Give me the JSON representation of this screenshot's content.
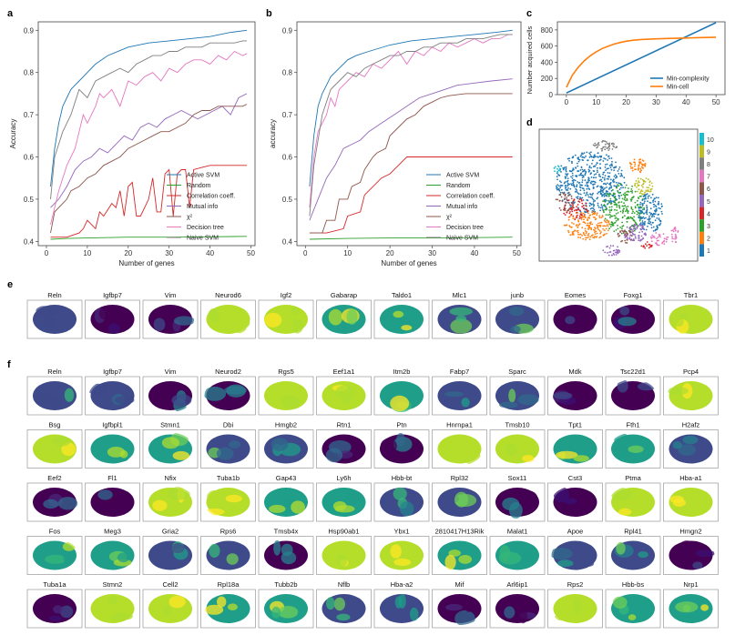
{
  "panel_labels": {
    "a": "a",
    "b": "b",
    "c": "c",
    "d": "d",
    "e": "e",
    "f": "f"
  },
  "colors": {
    "active_svm": "#1f77b4",
    "random": "#2ca02c",
    "correlation": "#d62728",
    "mutual_info": "#9467bd",
    "chi2": "#8c564b",
    "decision_tree": "#e377c2",
    "naive_svm": "#7f7f7f",
    "min_complexity": "#1f77b4",
    "min_cell": "#ff7f0e"
  },
  "chart_data": [
    {
      "id": "a",
      "type": "line",
      "xlabel": "Number of genes",
      "ylabel": "Accuracy",
      "xlim": [
        -2,
        51
      ],
      "ylim": [
        0.39,
        0.92
      ],
      "xticks": [
        0,
        10,
        20,
        30,
        40,
        50
      ],
      "yticks": [
        0.4,
        0.5,
        0.6,
        0.7,
        0.8,
        0.9
      ],
      "ytick_labels": [
        "0.4",
        "0.5",
        "0.6",
        "0.7",
        "0.8",
        "0.9"
      ],
      "series": [
        {
          "name": "Active SVM",
          "key": "active_svm",
          "x": [
            1,
            2,
            3,
            4,
            5,
            6,
            7,
            8,
            10,
            12,
            15,
            20,
            25,
            30,
            35,
            40,
            45,
            49
          ],
          "y": [
            0.53,
            0.62,
            0.68,
            0.72,
            0.74,
            0.76,
            0.77,
            0.78,
            0.8,
            0.82,
            0.84,
            0.86,
            0.87,
            0.875,
            0.88,
            0.885,
            0.895,
            0.9
          ]
        },
        {
          "name": "Random",
          "key": "random",
          "x": [
            1,
            5,
            10,
            20,
            30,
            40,
            49
          ],
          "y": [
            0.405,
            0.407,
            0.408,
            0.41,
            0.41,
            0.411,
            0.412
          ]
        },
        {
          "name": "Correlation coeff.",
          "key": "correlation",
          "x": [
            1,
            5,
            8,
            9,
            10,
            12,
            13,
            14,
            16,
            17,
            18,
            19,
            20,
            21,
            22,
            23,
            24,
            25,
            26,
            27,
            28,
            29,
            30,
            31,
            32,
            33,
            34,
            35,
            36,
            38,
            40,
            42,
            45,
            49
          ],
          "y": [
            0.41,
            0.41,
            0.42,
            0.43,
            0.45,
            0.43,
            0.47,
            0.46,
            0.49,
            0.48,
            0.52,
            0.46,
            0.53,
            0.54,
            0.46,
            0.46,
            0.48,
            0.5,
            0.55,
            0.47,
            0.47,
            0.56,
            0.57,
            0.46,
            0.56,
            0.57,
            0.57,
            0.48,
            0.57,
            0.575,
            0.58,
            0.58,
            0.58,
            0.58
          ]
        },
        {
          "name": "Mutual info",
          "key": "mutual_info",
          "x": [
            1,
            3,
            5,
            7,
            9,
            11,
            13,
            15,
            17,
            19,
            21,
            23,
            25,
            27,
            29,
            31,
            33,
            35,
            37,
            39,
            41,
            43,
            45,
            47,
            49
          ],
          "y": [
            0.48,
            0.5,
            0.53,
            0.57,
            0.59,
            0.6,
            0.62,
            0.61,
            0.63,
            0.65,
            0.64,
            0.67,
            0.68,
            0.67,
            0.69,
            0.7,
            0.71,
            0.7,
            0.69,
            0.7,
            0.71,
            0.72,
            0.7,
            0.74,
            0.75
          ]
        },
        {
          "name": "χ²",
          "key": "chi2",
          "x": [
            1,
            2,
            3,
            5,
            6,
            8,
            10,
            12,
            14,
            16,
            18,
            20,
            22,
            24,
            26,
            28,
            30,
            32,
            34,
            36,
            38,
            40,
            42,
            44,
            46,
            48,
            49
          ],
          "y": [
            0.42,
            0.47,
            0.48,
            0.5,
            0.52,
            0.53,
            0.55,
            0.56,
            0.58,
            0.59,
            0.6,
            0.62,
            0.63,
            0.64,
            0.65,
            0.66,
            0.66,
            0.67,
            0.68,
            0.7,
            0.71,
            0.71,
            0.72,
            0.72,
            0.72,
            0.72,
            0.725
          ]
        },
        {
          "name": "Decision tree",
          "key": "decision_tree",
          "x": [
            1,
            3,
            5,
            7,
            8,
            9,
            10,
            12,
            13,
            14,
            16,
            18,
            20,
            22,
            24,
            26,
            28,
            30,
            32,
            34,
            36,
            38,
            40,
            42,
            44,
            46,
            48,
            49
          ],
          "y": [
            0.44,
            0.52,
            0.58,
            0.62,
            0.66,
            0.7,
            0.68,
            0.72,
            0.75,
            0.74,
            0.76,
            0.72,
            0.78,
            0.77,
            0.79,
            0.8,
            0.78,
            0.81,
            0.8,
            0.82,
            0.83,
            0.83,
            0.82,
            0.84,
            0.83,
            0.85,
            0.84,
            0.845
          ]
        },
        {
          "name": "Naive SVM",
          "key": "naive_svm",
          "x": [
            1,
            2,
            4,
            6,
            7,
            8,
            10,
            12,
            14,
            16,
            18,
            20,
            22,
            24,
            26,
            28,
            30,
            32,
            34,
            36,
            38,
            40,
            42,
            44,
            46,
            48,
            49
          ],
          "y": [
            0.5,
            0.6,
            0.66,
            0.7,
            0.73,
            0.76,
            0.74,
            0.78,
            0.79,
            0.8,
            0.81,
            0.8,
            0.82,
            0.83,
            0.84,
            0.84,
            0.85,
            0.85,
            0.86,
            0.86,
            0.86,
            0.87,
            0.87,
            0.87,
            0.87,
            0.875,
            0.875
          ]
        }
      ]
    },
    {
      "id": "b",
      "type": "line",
      "xlabel": "Number of genes",
      "ylabel": "accuracy",
      "xlim": [
        -2,
        51
      ],
      "ylim": [
        0.39,
        0.92
      ],
      "xticks": [
        0,
        10,
        20,
        30,
        40,
        50
      ],
      "yticks": [
        0.4,
        0.5,
        0.6,
        0.7,
        0.8,
        0.9
      ],
      "ytick_labels": [
        "0.4",
        "0.5",
        "0.6",
        "0.7",
        "0.8",
        "0.9"
      ],
      "series": [
        {
          "name": "Active SVM",
          "key": "active_svm",
          "x": [
            1,
            2,
            3,
            4,
            5,
            6,
            8,
            10,
            12,
            15,
            20,
            25,
            30,
            35,
            40,
            45,
            49
          ],
          "y": [
            0.53,
            0.65,
            0.72,
            0.75,
            0.77,
            0.79,
            0.81,
            0.83,
            0.84,
            0.85,
            0.865,
            0.875,
            0.88,
            0.885,
            0.89,
            0.895,
            0.9
          ]
        },
        {
          "name": "Random",
          "key": "random",
          "x": [
            1,
            10,
            20,
            30,
            40,
            49
          ],
          "y": [
            0.405,
            0.407,
            0.408,
            0.408,
            0.409,
            0.41
          ]
        },
        {
          "name": "Correlation coeff.",
          "key": "correlation",
          "x": [
            1,
            5,
            9,
            10,
            13,
            14,
            18,
            20,
            22,
            24,
            49
          ],
          "y": [
            0.42,
            0.42,
            0.43,
            0.46,
            0.47,
            0.51,
            0.55,
            0.56,
            0.58,
            0.6,
            0.6
          ]
        },
        {
          "name": "Mutual info",
          "key": "mutual_info",
          "x": [
            1,
            3,
            5,
            7,
            9,
            11,
            13,
            15,
            18,
            21,
            24,
            27,
            30,
            33,
            36,
            40,
            44,
            49
          ],
          "y": [
            0.45,
            0.5,
            0.55,
            0.58,
            0.62,
            0.63,
            0.64,
            0.66,
            0.68,
            0.7,
            0.72,
            0.74,
            0.75,
            0.76,
            0.77,
            0.775,
            0.78,
            0.785
          ]
        },
        {
          "name": "χ²",
          "key": "chi2",
          "x": [
            1,
            4,
            5,
            7,
            8,
            10,
            11,
            13,
            14,
            16,
            17,
            19,
            20,
            22,
            24,
            26,
            28,
            30,
            32,
            34,
            38,
            42,
            46,
            49
          ],
          "y": [
            0.42,
            0.42,
            0.45,
            0.45,
            0.5,
            0.5,
            0.53,
            0.54,
            0.57,
            0.6,
            0.61,
            0.62,
            0.65,
            0.67,
            0.69,
            0.7,
            0.72,
            0.73,
            0.74,
            0.745,
            0.75,
            0.75,
            0.75,
            0.75
          ]
        },
        {
          "name": "Decision tree",
          "key": "decision_tree",
          "x": [
            1,
            2,
            3,
            5,
            6,
            7,
            8,
            10,
            12,
            14,
            16,
            18,
            20,
            22,
            24,
            26,
            28,
            30,
            32,
            34,
            36,
            38,
            40,
            42,
            44,
            46,
            48,
            49
          ],
          "y": [
            0.48,
            0.6,
            0.66,
            0.7,
            0.74,
            0.72,
            0.76,
            0.78,
            0.8,
            0.79,
            0.82,
            0.81,
            0.83,
            0.85,
            0.82,
            0.85,
            0.84,
            0.86,
            0.85,
            0.87,
            0.86,
            0.87,
            0.88,
            0.87,
            0.88,
            0.88,
            0.89,
            0.89
          ]
        },
        {
          "name": "Naive SVM",
          "key": "naive_svm",
          "x": [
            1,
            2,
            3,
            4,
            6,
            8,
            10,
            12,
            14,
            16,
            18,
            20,
            22,
            24,
            26,
            28,
            30,
            32,
            34,
            36,
            38,
            40,
            42,
            44,
            46,
            48,
            49
          ],
          "y": [
            0.46,
            0.58,
            0.64,
            0.7,
            0.76,
            0.78,
            0.8,
            0.79,
            0.81,
            0.82,
            0.83,
            0.84,
            0.84,
            0.85,
            0.85,
            0.86,
            0.86,
            0.87,
            0.87,
            0.87,
            0.88,
            0.88,
            0.88,
            0.885,
            0.89,
            0.89,
            0.89
          ]
        }
      ]
    },
    {
      "id": "c",
      "type": "line",
      "xlabel": "",
      "ylabel": "Number acquired cells",
      "xlim": [
        -3,
        53
      ],
      "ylim": [
        0,
        900
      ],
      "xticks": [
        0,
        10,
        20,
        30,
        40,
        50
      ],
      "yticks": [
        0,
        200,
        400,
        600,
        800
      ],
      "ytick_labels": [
        "0",
        "200",
        "400",
        "600",
        "800"
      ],
      "series": [
        {
          "name": "Min-complexity",
          "key": "min_complexity",
          "x": [
            0,
            50
          ],
          "y": [
            20,
            890
          ]
        },
        {
          "name": "Min-cell",
          "key": "min_cell",
          "x": [
            0,
            2,
            4,
            6,
            8,
            10,
            12,
            14,
            16,
            18,
            20,
            22,
            25,
            30,
            35,
            40,
            45,
            50
          ],
          "y": [
            90,
            240,
            340,
            420,
            480,
            530,
            570,
            600,
            625,
            645,
            660,
            672,
            682,
            690,
            695,
            700,
            705,
            710
          ]
        }
      ]
    },
    {
      "id": "d",
      "type": "scatter",
      "colorbar_ticks": [
        "1",
        "2",
        "3",
        "4",
        "5",
        "6",
        "7",
        "8",
        "9",
        "10"
      ],
      "cluster_colors": [
        "#1f77b4",
        "#ff7f0e",
        "#2ca02c",
        "#d62728",
        "#9467bd",
        "#8c564b",
        "#e377c2",
        "#7f7f7f",
        "#bcbd22",
        "#17becf"
      ]
    }
  ],
  "legend": [
    "Active SVM",
    "Random",
    "Correlation coeff.",
    "Mutual info",
    "χ²",
    "Decision tree",
    "Naive SVM"
  ],
  "legend_keys": [
    "active_svm",
    "random",
    "correlation",
    "mutual_info",
    "chi2",
    "decision_tree",
    "naive_svm"
  ],
  "legend_c": [
    "Min-complexity",
    "Min-cell"
  ],
  "panel_e_genes": [
    "Reln",
    "Igfbp7",
    "Vim",
    "Neurod6",
    "Igf2",
    "Gabarap",
    "Taldo1",
    "Mlc1",
    "junb",
    "Eomes",
    "Foxg1",
    "Tbr1"
  ],
  "panel_f_genes": [
    "Reln",
    "Igfbp7",
    "Vim",
    "Neurod2",
    "Rgs5",
    "Eef1a1",
    "Itm2b",
    "Fabp7",
    "Sparc",
    "Mdk",
    "Tsc22d1",
    "Pcp4",
    "Bsg",
    "Igfbpl1",
    "Stmn1",
    "Dbi",
    "Hmgb2",
    "Rtn1",
    "Ptn",
    "Hnrnpa1",
    "Tmsb10",
    "Tpt1",
    "Fth1",
    "H2afz",
    "Eef2",
    "Fl1",
    "Nfix",
    "Tuba1b",
    "Gap43",
    "Ly6h",
    "Hbb-bt",
    "Rpl32",
    "Sox11",
    "Cst3",
    "Ptma",
    "Hba-a1",
    "Fos",
    "Meg3",
    "Gria2",
    "Rps6",
    "Tmsb4x",
    "Hsp90ab1",
    "Ybx1",
    "2810417H13Rik",
    "Malat1",
    "Apoe",
    "Rpl41",
    "Hmgn2",
    "Tuba1a",
    "Stmn2",
    "Cell2",
    "Rpl18a",
    "Tubb2b",
    "Nflb",
    "Hba-a2",
    "Mif",
    "Arl6ip1",
    "Rps2",
    "Hbb-bs",
    "Nrp1"
  ]
}
